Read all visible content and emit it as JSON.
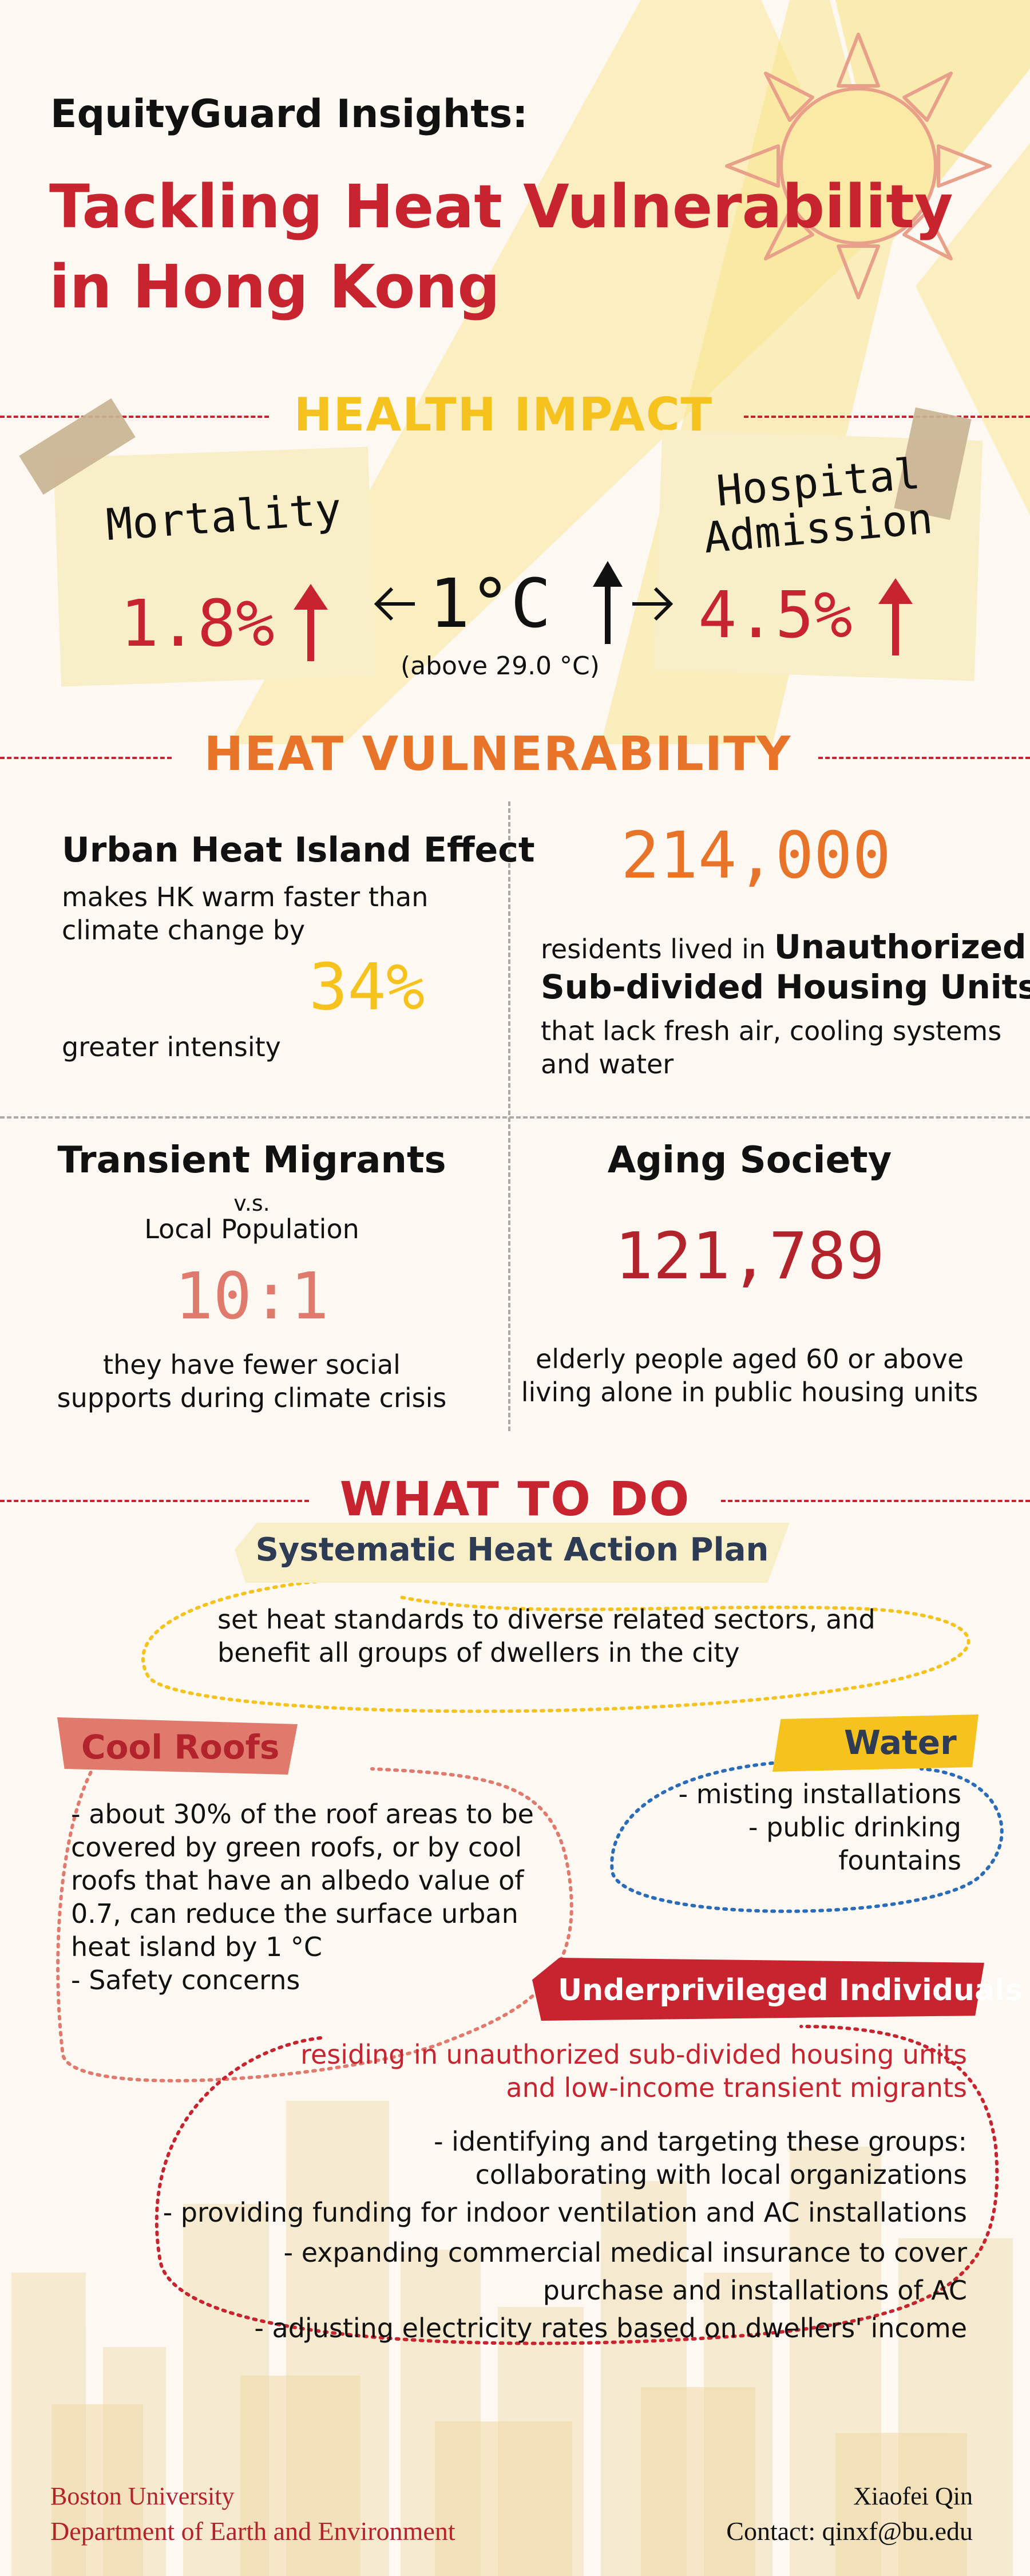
{
  "header": {
    "eyebrow": "EquityGuard Insights:",
    "title_line1": "Tackling Heat Vulnerability",
    "title_line2": "in Hong Kong"
  },
  "health_impact": {
    "section_title": "HEALTH IMPACT",
    "mortality_label": "Mortality",
    "mortality_value": "1.8%",
    "temp_value": "1°C",
    "temp_note": "(above 29.0 °C)",
    "hospital_label_line1": "Hospital",
    "hospital_label_line2": "Admission",
    "hospital_value": "4.5%"
  },
  "heat_vulnerability": {
    "section_title": "HEAT VULNERABILITY",
    "uhi": {
      "title": "Urban Heat Island Effect",
      "line1": "makes HK warm faster than",
      "line2": "climate change by",
      "value": "34%",
      "line3": "greater intensity"
    },
    "housing": {
      "value": "214,000",
      "line1_prefix": "residents lived in ",
      "line1_bold": "Unauthorized",
      "line2_bold": "Sub-divided Housing Units",
      "line3": "that lack fresh air, cooling systems",
      "line4": "and water"
    },
    "migrants": {
      "title": "Transient Migrants",
      "vs": "v.s.",
      "subtitle": "Local Population",
      "value": "10:1",
      "line1": "they have fewer social",
      "line2": "supports during climate crisis"
    },
    "aging": {
      "title": "Aging Society",
      "value": "121,789",
      "line1": "elderly people aged 60 or above",
      "line2": "living alone in public housing units"
    }
  },
  "what_to_do": {
    "section_title": "WHAT TO DO",
    "plan": {
      "title": "Systematic Heat Action Plan",
      "line1": "set heat standards to diverse related sectors, and",
      "line2": "benefit all groups of dwellers in the city"
    },
    "cool_roofs": {
      "title": "Cool Roofs",
      "lines": [
        "- about 30% of the roof areas to be",
        "covered by green roofs, or by cool",
        "roofs that have an albedo value of",
        "0.7, can reduce the surface urban",
        "heat island by 1 °C",
        "- Safety concerns"
      ]
    },
    "water": {
      "title": "Water",
      "line1": "- misting installations",
      "line2": "- public drinking fountains"
    },
    "underprivileged": {
      "title": "Underprivileged Individuals",
      "sub1": "residing in unauthorized sub-divided housing units",
      "sub2": "and low-income transient migrants",
      "lines": [
        "- identifying and targeting these groups:",
        "collaborating with local organizations",
        "- providing funding for indoor ventilation and AC installations",
        "- expanding commercial medical insurance to cover",
        "purchase and installations of AC",
        "- adjusting electricity rates based on dwellers' income"
      ]
    }
  },
  "footer": {
    "org1": "Boston University",
    "org2": "Department of Earth and Environment",
    "author": "Xiaofei Qin",
    "contact": "Contact: qinxf@bu.edu"
  },
  "colors": {
    "red": "#c8242f",
    "orange": "#e8742a",
    "yellow": "#f6c21d",
    "pink": "#e07a6d",
    "crimson": "#b3232c",
    "navy": "#2e3b55",
    "blue": "#2b6cb8"
  },
  "icons": {
    "sun": "sun-icon",
    "up_arrow": "up-arrow-icon",
    "left_arrow": "left-arrow-icon",
    "right_arrow": "right-arrow-icon",
    "skyline": "city-skyline-icon"
  }
}
